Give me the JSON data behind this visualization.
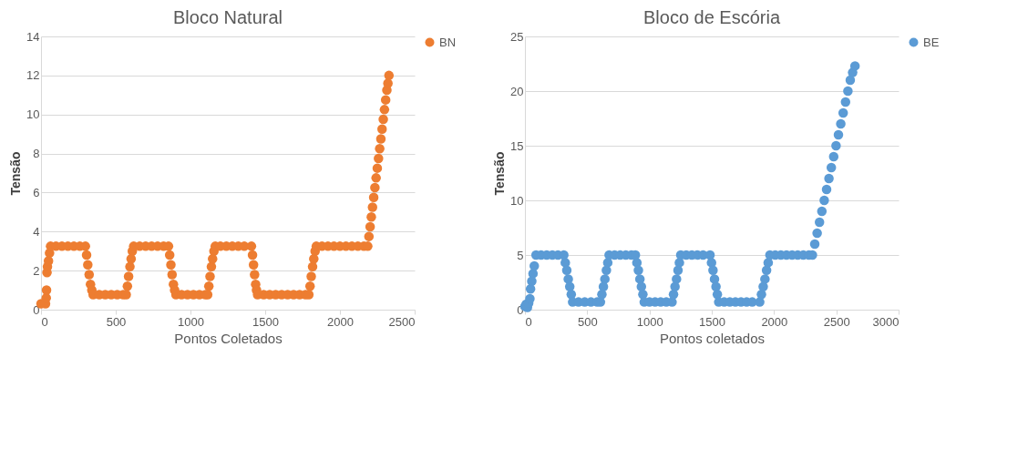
{
  "chart_data": [
    {
      "type": "scatter",
      "title": "Bloco Natural",
      "xlabel": "Pontos Coletados",
      "ylabel": "Tensão",
      "xlim": [
        0,
        2500
      ],
      "xticks": [
        0,
        500,
        1000,
        1500,
        2000,
        2500
      ],
      "ylim": [
        0,
        14
      ],
      "yticks": [
        0,
        2,
        4,
        6,
        8,
        10,
        12,
        14
      ],
      "grid": "y",
      "legend": "right",
      "marker": "circle",
      "series": [
        {
          "name": "BN",
          "color": "#ed7d31",
          "x": [
            0,
            30,
            35,
            37,
            40,
            43,
            50,
            57,
            64,
            100,
            140,
            180,
            220,
            260,
            297,
            305,
            313,
            322,
            331,
            340,
            349,
            390,
            430,
            470,
            510,
            550,
            570,
            578,
            586,
            595,
            603,
            611,
            620,
            660,
            700,
            740,
            780,
            820,
            853,
            861,
            869,
            877,
            886,
            894,
            903,
            940,
            980,
            1020,
            1060,
            1100,
            1115,
            1123,
            1131,
            1140,
            1148,
            1157,
            1166,
            1200,
            1240,
            1280,
            1320,
            1360,
            1408,
            1415,
            1422,
            1429,
            1436,
            1442,
            1449,
            1490,
            1530,
            1570,
            1610,
            1650,
            1690,
            1730,
            1770,
            1792,
            1800,
            1808,
            1817,
            1825,
            1834,
            1842,
            1880,
            1920,
            1960,
            2000,
            2040,
            2080,
            2120,
            2160,
            2186,
            2194,
            2202,
            2210,
            2218,
            2226,
            2234,
            2242,
            2250,
            2258,
            2266,
            2274,
            2282,
            2290,
            2298,
            2306,
            2314,
            2321,
            2328
          ],
          "values": [
            0.3,
            0.3,
            0.6,
            1.0,
            1.9,
            2.2,
            2.5,
            2.9,
            3.25,
            3.25,
            3.25,
            3.25,
            3.25,
            3.25,
            3.25,
            2.8,
            2.3,
            1.8,
            1.3,
            1.0,
            0.77,
            0.77,
            0.77,
            0.77,
            0.77,
            0.77,
            0.77,
            1.2,
            1.7,
            2.2,
            2.6,
            3.0,
            3.25,
            3.25,
            3.25,
            3.25,
            3.25,
            3.25,
            3.25,
            2.8,
            2.3,
            1.8,
            1.3,
            1.0,
            0.77,
            0.77,
            0.77,
            0.77,
            0.77,
            0.77,
            0.77,
            1.2,
            1.7,
            2.2,
            2.6,
            3.0,
            3.25,
            3.25,
            3.25,
            3.25,
            3.25,
            3.25,
            3.25,
            2.8,
            2.3,
            1.8,
            1.3,
            1.0,
            0.77,
            0.77,
            0.77,
            0.77,
            0.77,
            0.77,
            0.77,
            0.77,
            0.77,
            0.77,
            1.2,
            1.7,
            2.2,
            2.6,
            3.0,
            3.25,
            3.25,
            3.25,
            3.25,
            3.25,
            3.25,
            3.25,
            3.25,
            3.25,
            3.25,
            3.75,
            4.25,
            4.75,
            5.25,
            5.75,
            6.25,
            6.75,
            7.25,
            7.75,
            8.25,
            8.75,
            9.25,
            9.75,
            10.25,
            10.75,
            11.25,
            11.6,
            12
          ]
        }
      ]
    },
    {
      "type": "scatter",
      "title": "Bloco de Escória",
      "xlabel": "Pontos coletados",
      "ylabel": "Tensão",
      "xlim": [
        0,
        3000
      ],
      "xticks": [
        0,
        500,
        1000,
        1500,
        2000,
        2500,
        3000
      ],
      "ylim": [
        0,
        25
      ],
      "yticks": [
        0,
        5,
        10,
        15,
        20,
        25
      ],
      "grid": "y",
      "legend": "right",
      "marker": "circle",
      "series": [
        {
          "name": "BE",
          "color": "#5b9bd5",
          "x": [
            0,
            10,
            20,
            30,
            40,
            45,
            55,
            65,
            75,
            89,
            130,
            175,
            220,
            265,
            312,
            324,
            336,
            348,
            360,
            372,
            383,
            430,
            480,
            530,
            580,
            606,
            618,
            630,
            642,
            654,
            665,
            676,
            720,
            765,
            810,
            855,
            887,
            899,
            911,
            923,
            935,
            947,
            958,
            1000,
            1045,
            1090,
            1135,
            1181,
            1193,
            1205,
            1217,
            1229,
            1240,
            1251,
            1295,
            1340,
            1385,
            1430,
            1486,
            1498,
            1510,
            1522,
            1534,
            1545,
            1556,
            1600,
            1645,
            1690,
            1735,
            1780,
            1825,
            1885,
            1899,
            1913,
            1927,
            1940,
            1953,
            1967,
            2010,
            2055,
            2100,
            2145,
            2190,
            2235,
            2280,
            2308,
            2327,
            2346,
            2365,
            2384,
            2403,
            2422,
            2441,
            2460,
            2479,
            2498,
            2517,
            2536,
            2555,
            2574,
            2593,
            2612,
            2631,
            2650
          ],
          "values": [
            0.3,
            0.5,
            0.2,
            0.6,
            1.0,
            1.9,
            2.6,
            3.3,
            4.0,
            5,
            5,
            5,
            5,
            5,
            5,
            4.3,
            3.6,
            2.8,
            2.1,
            1.4,
            0.7,
            0.7,
            0.7,
            0.7,
            0.7,
            0.7,
            1.4,
            2.1,
            2.8,
            3.6,
            4.3,
            5,
            5,
            5,
            5,
            5,
            5,
            4.3,
            3.6,
            2.8,
            2.1,
            1.4,
            0.7,
            0.7,
            0.7,
            0.7,
            0.7,
            0.7,
            1.4,
            2.1,
            2.8,
            3.6,
            4.3,
            5,
            5,
            5,
            5,
            5,
            5,
            4.3,
            3.6,
            2.8,
            2.1,
            1.4,
            0.7,
            0.7,
            0.7,
            0.7,
            0.7,
            0.7,
            0.7,
            0.7,
            1.4,
            2.1,
            2.8,
            3.6,
            4.3,
            5,
            5,
            5,
            5,
            5,
            5,
            5,
            5,
            5,
            6,
            7,
            8,
            9,
            10,
            11,
            12,
            13,
            14,
            15,
            16,
            17,
            18,
            19,
            20,
            21,
            21.7,
            22.3
          ]
        }
      ]
    }
  ]
}
